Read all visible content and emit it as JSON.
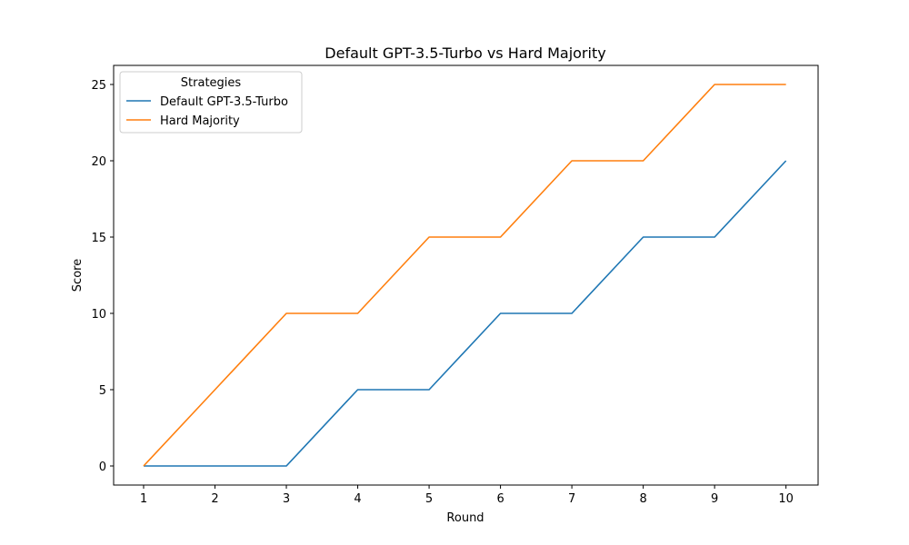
{
  "chart_data": {
    "type": "line",
    "title": "Default GPT-3.5-Turbo vs Hard Majority",
    "xlabel": "Round",
    "ylabel": "Score",
    "x": [
      1,
      2,
      3,
      4,
      5,
      6,
      7,
      8,
      9,
      10
    ],
    "xticks": [
      "1",
      "2",
      "3",
      "4",
      "5",
      "6",
      "7",
      "8",
      "9",
      "10"
    ],
    "yticks": [
      "0",
      "5",
      "10",
      "15",
      "20",
      "25"
    ],
    "xlim": [
      0.58,
      10.45
    ],
    "ylim": [
      -1.25,
      26.25
    ],
    "grid": false,
    "legend": {
      "title": "Strategies",
      "placement": "top-left"
    },
    "series": [
      {
        "name": "Default GPT-3.5-Turbo",
        "color": "#1f77b4",
        "values": [
          0,
          0,
          0,
          5,
          5,
          10,
          10,
          15,
          15,
          20
        ]
      },
      {
        "name": "Hard Majority",
        "color": "#ff7f0e",
        "values": [
          0,
          5,
          10,
          10,
          15,
          15,
          20,
          20,
          25,
          25
        ]
      }
    ]
  }
}
